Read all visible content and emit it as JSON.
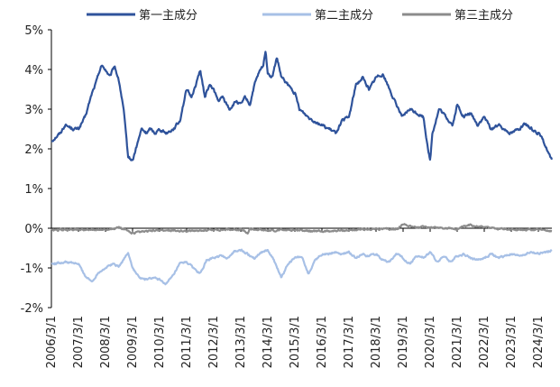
{
  "chart_data": {
    "type": "line",
    "title": "",
    "xlabel": "",
    "ylabel": "",
    "ylim": [
      -0.02,
      0.05
    ],
    "y_ticks": [
      {
        "value": 0.05,
        "label": "5%"
      },
      {
        "value": 0.04,
        "label": "4%"
      },
      {
        "value": 0.03,
        "label": "3%"
      },
      {
        "value": 0.02,
        "label": "2%"
      },
      {
        "value": 0.01,
        "label": "1%"
      },
      {
        "value": 0.0,
        "label": "0%"
      },
      {
        "value": -0.01,
        "label": "-1%"
      },
      {
        "value": -0.02,
        "label": "-2%"
      }
    ],
    "x_ticks": [
      "2006/3/1",
      "2007/3/1",
      "2008/3/1",
      "2009/3/1",
      "2010/3/1",
      "2011/3/1",
      "2012/3/1",
      "2013/3/1",
      "2014/3/1",
      "2015/3/1",
      "2016/3/1",
      "2017/3/1",
      "2018/3/1",
      "2019/3/1",
      "2020/3/1",
      "2021/3/1",
      "2022/3/1",
      "2023/3/1",
      "2024/3/1"
    ],
    "xlim": [
      "2006/3/1",
      "2024/9/1"
    ],
    "legend_position": "top",
    "grid": false,
    "series": [
      {
        "name": "第一主成分",
        "color": "#2f539b",
        "x": [
          "2006/3/1",
          "2006/7/1",
          "2006/9/1",
          "2007/1/1",
          "2007/3/1",
          "2007/6/1",
          "2007/9/1",
          "2007/11/1",
          "2008/1/1",
          "2008/3/1",
          "2008/5/1",
          "2008/7/1",
          "2008/9/1",
          "2008/11/1",
          "2009/1/1",
          "2009/3/1",
          "2009/5/1",
          "2009/7/1",
          "2009/9/1",
          "2009/11/1",
          "2010/1/1",
          "2010/3/1",
          "2010/6/1",
          "2010/9/1",
          "2010/12/1",
          "2011/1/1",
          "2011/3/1",
          "2011/5/1",
          "2011/7/1",
          "2011/9/1",
          "2011/11/1",
          "2012/1/1",
          "2012/3/1",
          "2012/5/1",
          "2012/7/1",
          "2012/10/1",
          "2013/1/1",
          "2013/3/1",
          "2013/5/1",
          "2013/7/1",
          "2013/9/1",
          "2013/11/1",
          "2014/1/1",
          "2014/2/1",
          "2014/3/1",
          "2014/5/1",
          "2014/7/1",
          "2014/9/1",
          "2014/12/1",
          "2015/3/1",
          "2015/5/1",
          "2015/7/1",
          "2015/9/1",
          "2015/12/1",
          "2016/3/1",
          "2016/6/1",
          "2016/9/1",
          "2016/12/1",
          "2017/3/1",
          "2017/6/1",
          "2017/9/1",
          "2017/12/1",
          "2018/3/1",
          "2018/6/1",
          "2018/9/1",
          "2018/12/1",
          "2019/3/1",
          "2019/6/1",
          "2019/9/1",
          "2019/12/1",
          "2020/1/1",
          "2020/3/1",
          "2020/4/1",
          "2020/7/1",
          "2020/10/1",
          "2021/1/1",
          "2021/3/1",
          "2021/6/1",
          "2021/9/1",
          "2021/12/1",
          "2022/3/1",
          "2022/6/1",
          "2022/9/1",
          "2022/12/1",
          "2023/3/1",
          "2023/6/1",
          "2023/9/1",
          "2023/12/1",
          "2024/3/1",
          "2024/6/1",
          "2024/9/1"
        ],
        "values": [
          0.022,
          0.024,
          0.026,
          0.025,
          0.025,
          0.028,
          0.034,
          0.037,
          0.041,
          0.04,
          0.038,
          0.041,
          0.037,
          0.03,
          0.018,
          0.017,
          0.021,
          0.025,
          0.024,
          0.025,
          0.024,
          0.025,
          0.024,
          0.025,
          0.027,
          0.03,
          0.035,
          0.033,
          0.036,
          0.04,
          0.033,
          0.036,
          0.035,
          0.032,
          0.033,
          0.03,
          0.032,
          0.031,
          0.033,
          0.031,
          0.036,
          0.039,
          0.041,
          0.045,
          0.039,
          0.038,
          0.043,
          0.038,
          0.036,
          0.034,
          0.03,
          0.029,
          0.028,
          0.027,
          0.026,
          0.025,
          0.024,
          0.027,
          0.028,
          0.036,
          0.038,
          0.035,
          0.038,
          0.039,
          0.035,
          0.031,
          0.028,
          0.03,
          0.029,
          0.028,
          0.024,
          0.017,
          0.024,
          0.03,
          0.028,
          0.026,
          0.031,
          0.028,
          0.029,
          0.026,
          0.028,
          0.025,
          0.026,
          0.025,
          0.024,
          0.025,
          0.026,
          0.025,
          0.024,
          0.021,
          0.017
        ]
      },
      {
        "name": "第二主成分",
        "color": "#a7c0e6",
        "x": [
          "2006/3/1",
          "2006/9/1",
          "2007/3/1",
          "2007/6/1",
          "2007/9/1",
          "2007/12/1",
          "2008/3/1",
          "2008/6/1",
          "2008/9/1",
          "2008/11/1",
          "2009/1/1",
          "2009/3/1",
          "2009/6/1",
          "2009/9/1",
          "2009/12/1",
          "2010/3/1",
          "2010/6/1",
          "2010/9/1",
          "2010/12/1",
          "2011/3/1",
          "2011/6/1",
          "2011/9/1",
          "2011/12/1",
          "2012/3/1",
          "2012/6/1",
          "2012/9/1",
          "2012/12/1",
          "2013/3/1",
          "2013/6/1",
          "2013/9/1",
          "2013/12/1",
          "2014/3/1",
          "2014/6/1",
          "2014/9/1",
          "2014/12/1",
          "2015/3/1",
          "2015/6/1",
          "2015/9/1",
          "2015/12/1",
          "2016/3/1",
          "2016/6/1",
          "2016/9/1",
          "2016/12/1",
          "2017/3/1",
          "2017/6/1",
          "2017/9/1",
          "2017/12/1",
          "2018/3/1",
          "2018/6/1",
          "2018/9/1",
          "2018/12/1",
          "2019/3/1",
          "2019/6/1",
          "2019/9/1",
          "2019/12/1",
          "2020/3/1",
          "2020/6/1",
          "2020/9/1",
          "2020/12/1",
          "2021/3/1",
          "2021/6/1",
          "2021/9/1",
          "2021/12/1",
          "2022/3/1",
          "2022/6/1",
          "2022/9/1",
          "2022/12/1",
          "2023/3/1",
          "2023/6/1",
          "2023/9/1",
          "2023/12/1",
          "2024/3/1",
          "2024/6/1",
          "2024/9/1"
        ],
        "values": [
          -0.009,
          -0.0085,
          -0.009,
          -0.012,
          -0.0135,
          -0.011,
          -0.01,
          -0.009,
          -0.0095,
          -0.008,
          -0.006,
          -0.01,
          -0.0125,
          -0.013,
          -0.0125,
          -0.013,
          -0.014,
          -0.012,
          -0.009,
          -0.0085,
          -0.01,
          -0.0115,
          -0.008,
          -0.0075,
          -0.007,
          -0.0075,
          -0.006,
          -0.0055,
          -0.0065,
          -0.0075,
          -0.006,
          -0.0055,
          -0.0085,
          -0.0125,
          -0.009,
          -0.0075,
          -0.007,
          -0.0115,
          -0.008,
          -0.0065,
          -0.0065,
          -0.006,
          -0.0065,
          -0.006,
          -0.0075,
          -0.0065,
          -0.007,
          -0.0065,
          -0.008,
          -0.0085,
          -0.0065,
          -0.0075,
          -0.009,
          -0.007,
          -0.0075,
          -0.006,
          -0.0085,
          -0.007,
          -0.0085,
          -0.007,
          -0.0065,
          -0.0075,
          -0.008,
          -0.0075,
          -0.0065,
          -0.0075,
          -0.007,
          -0.0065,
          -0.007,
          -0.0065,
          -0.006,
          -0.0065,
          -0.006,
          -0.0055
        ]
      },
      {
        "name": "第三主成分",
        "color": "#8c8c8c",
        "x": [
          "2006/3/1",
          "2007/3/1",
          "2008/3/1",
          "2008/9/1",
          "2009/3/1",
          "2010/3/1",
          "2011/3/1",
          "2012/3/1",
          "2013/3/1",
          "2013/6/1",
          "2013/7/1",
          "2014/3/1",
          "2015/3/1",
          "2016/3/1",
          "2017/3/1",
          "2018/3/1",
          "2018/12/1",
          "2019/3/1",
          "2019/9/1",
          "2020/3/1",
          "2021/3/1",
          "2021/9/1",
          "2022/3/1",
          "2023/3/1",
          "2024/3/1",
          "2024/9/1"
        ],
        "values": [
          -0.0005,
          -0.0003,
          -0.0004,
          0.0002,
          -0.0012,
          -0.0005,
          -0.0007,
          -0.0004,
          -0.0003,
          -0.0013,
          -0.0002,
          -0.0006,
          -0.0004,
          -0.0008,
          -0.0005,
          -0.0002,
          -0.0003,
          0.001,
          0.0002,
          0.0003,
          -0.0002,
          0.0008,
          0.0003,
          -0.0003,
          -0.0004,
          -0.0008
        ]
      }
    ]
  }
}
